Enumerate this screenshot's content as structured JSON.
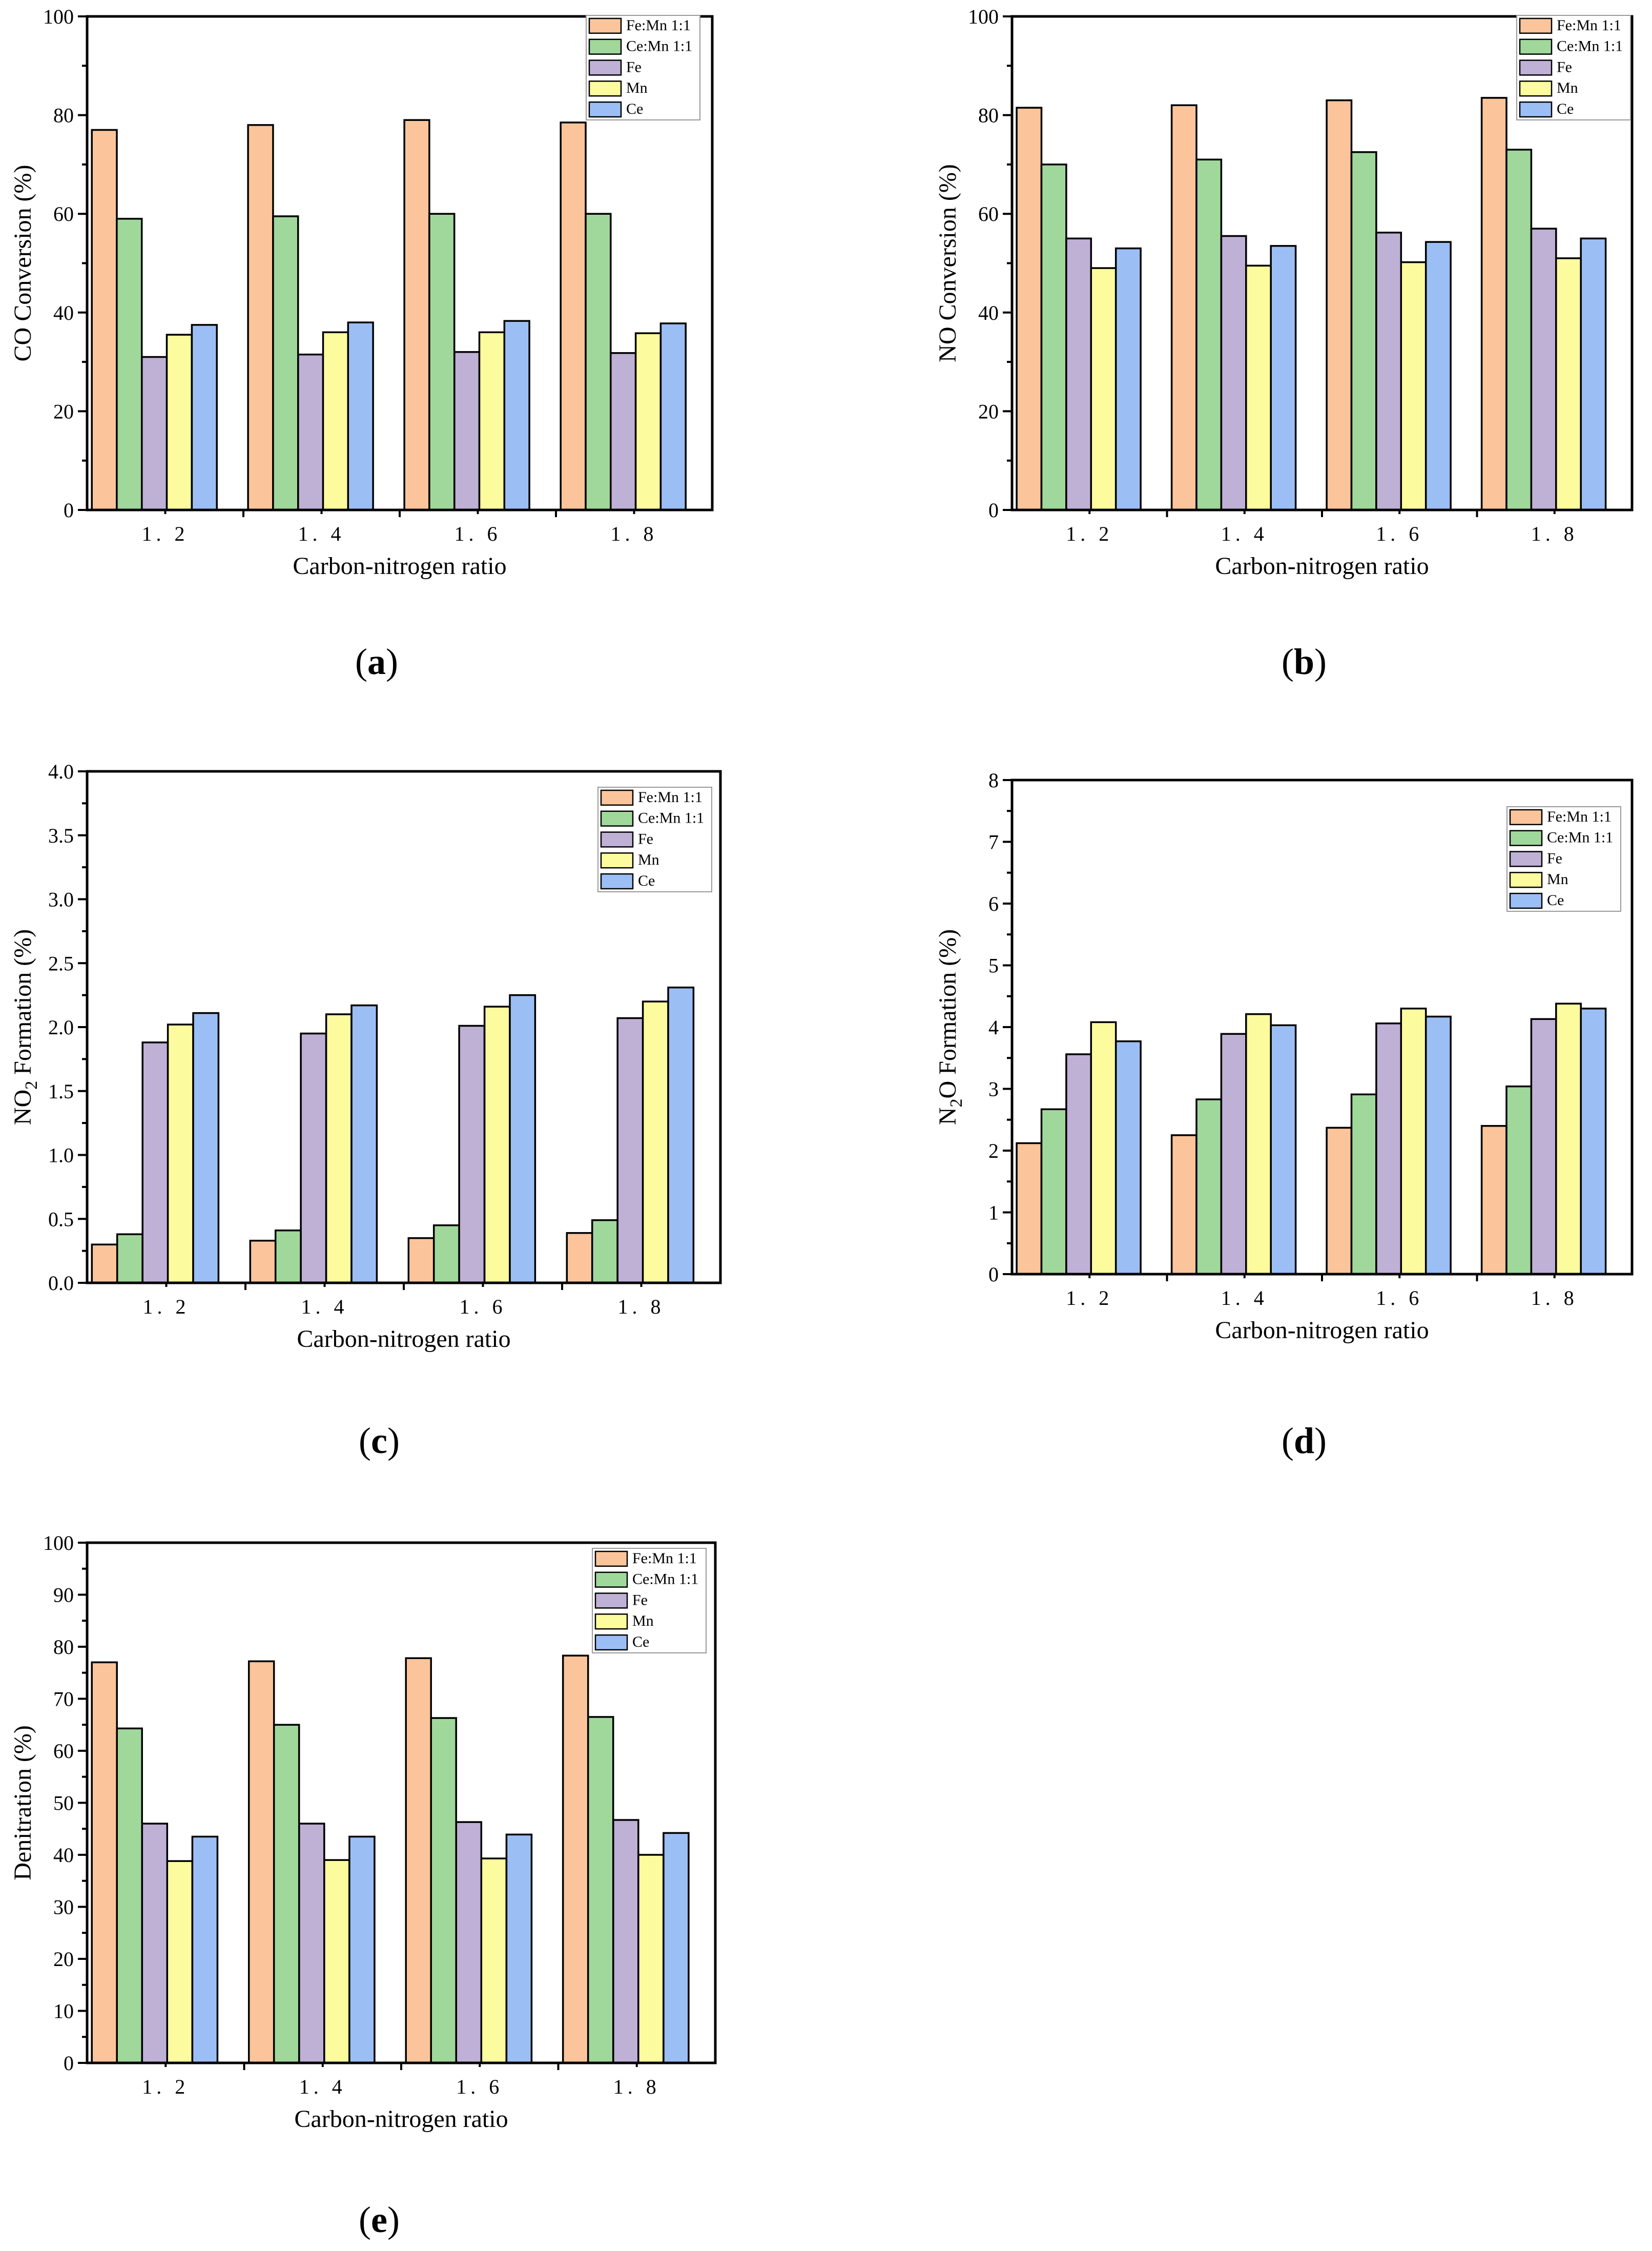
{
  "figure": {
    "panel_labels_open": "(",
    "panel_labels_close": ")"
  },
  "colors": {
    "Fe:Mn 1:1": "#FBC49B",
    "Ce:Mn 1:1": "#A0D89B",
    "Fe": "#BFB0D6",
    "Mn": "#FCFC9E",
    "Ce": "#9BBFF5"
  },
  "chart_data": [
    {
      "type": "bar",
      "panel": "a",
      "title": "",
      "xlabel": "Carbon-nitrogen ratio",
      "ylabel": "CO Conversion (%)",
      "ylim": [
        0,
        100
      ],
      "yticks": [
        "0",
        "20",
        "40",
        "60",
        "80",
        "100"
      ],
      "legend_position": "top-right",
      "categories": [
        "1. 2",
        "1. 4",
        "1. 6",
        "1. 8"
      ],
      "series": [
        {
          "name": "Fe:Mn 1:1",
          "values": [
            77.0,
            78.0,
            79.0,
            78.5
          ]
        },
        {
          "name": "Ce:Mn 1:1",
          "values": [
            59.0,
            59.5,
            60.0,
            60.0
          ]
        },
        {
          "name": "Fe",
          "values": [
            31.0,
            31.5,
            32.0,
            31.8
          ]
        },
        {
          "name": "Mn",
          "values": [
            35.5,
            36.0,
            36.0,
            35.8
          ]
        },
        {
          "name": "Ce",
          "values": [
            37.5,
            38.0,
            38.3,
            37.8
          ]
        }
      ]
    },
    {
      "type": "bar",
      "panel": "b",
      "title": "",
      "xlabel": "Carbon-nitrogen ratio",
      "ylabel": "NO Conversion (%)",
      "ylim": [
        0,
        100
      ],
      "yticks": [
        "0",
        "20",
        "40",
        "60",
        "80",
        "100"
      ],
      "legend_position": "top-right",
      "categories": [
        "1. 2",
        "1. 4",
        "1. 6",
        "1. 8"
      ],
      "series": [
        {
          "name": "Fe:Mn 1:1",
          "values": [
            81.5,
            82.0,
            83.0,
            83.5
          ]
        },
        {
          "name": "Ce:Mn 1:1",
          "values": [
            70.0,
            71.0,
            72.5,
            73.0
          ]
        },
        {
          "name": "Fe",
          "values": [
            55.0,
            55.5,
            56.2,
            57.0
          ]
        },
        {
          "name": "Mn",
          "values": [
            49.0,
            49.5,
            50.2,
            51.0
          ]
        },
        {
          "name": "Ce",
          "values": [
            53.0,
            53.5,
            54.3,
            55.0
          ]
        }
      ]
    },
    {
      "type": "bar",
      "panel": "c",
      "title": "",
      "xlabel": "Carbon-nitrogen ratio",
      "ylabel_main": "NO",
      "ylabel_sub": "2",
      "ylabel_rest": " Formation (%)",
      "ylim": [
        0,
        4
      ],
      "yticks": [
        "0.0",
        "0.5",
        "1.0",
        "1.5",
        "2.0",
        "2.5",
        "3.0",
        "3.5",
        "4.0"
      ],
      "legend_position": "top-right",
      "categories": [
        "1. 2",
        "1. 4",
        "1. 6",
        "1. 8"
      ],
      "series": [
        {
          "name": "Fe:Mn 1:1",
          "values": [
            0.3,
            0.33,
            0.35,
            0.39
          ]
        },
        {
          "name": "Ce:Mn 1:1",
          "values": [
            0.38,
            0.41,
            0.45,
            0.49
          ]
        },
        {
          "name": "Fe",
          "values": [
            1.88,
            1.95,
            2.01,
            2.07
          ]
        },
        {
          "name": "Mn",
          "values": [
            2.02,
            2.1,
            2.16,
            2.2
          ]
        },
        {
          "name": "Ce",
          "values": [
            2.11,
            2.17,
            2.25,
            2.31
          ]
        }
      ]
    },
    {
      "type": "bar",
      "panel": "d",
      "title": "",
      "xlabel": "Carbon-nitrogen ratio",
      "ylabel_main": "N",
      "ylabel_sub": "2",
      "ylabel_rest": "O Formation (%)",
      "ylim": [
        0,
        8
      ],
      "yticks": [
        "0",
        "1",
        "2",
        "3",
        "4",
        "5",
        "6",
        "7",
        "8"
      ],
      "legend_position": "top-right",
      "categories": [
        "1. 2",
        "1. 4",
        "1. 6",
        "1. 8"
      ],
      "series": [
        {
          "name": "Fe:Mn 1:1",
          "values": [
            2.12,
            2.25,
            2.37,
            2.4
          ]
        },
        {
          "name": "Ce:Mn 1:1",
          "values": [
            2.67,
            2.83,
            2.91,
            3.04
          ]
        },
        {
          "name": "Fe",
          "values": [
            3.56,
            3.89,
            4.06,
            4.13
          ]
        },
        {
          "name": "Mn",
          "values": [
            4.08,
            4.21,
            4.3,
            4.38
          ]
        },
        {
          "name": "Ce",
          "values": [
            3.77,
            4.03,
            4.17,
            4.3
          ]
        }
      ]
    },
    {
      "type": "bar",
      "panel": "e",
      "title": "",
      "xlabel": "Carbon-nitrogen ratio",
      "ylabel": "Denitration (%)",
      "ylim": [
        0,
        100
      ],
      "yticks": [
        "0",
        "10",
        "20",
        "30",
        "40",
        "50",
        "60",
        "70",
        "80",
        "90",
        "100"
      ],
      "legend_position": "top-right",
      "categories": [
        "1. 2",
        "1. 4",
        "1. 6",
        "1. 8"
      ],
      "series": [
        {
          "name": "Fe:Mn 1:1",
          "values": [
            77.0,
            77.2,
            77.8,
            78.3
          ]
        },
        {
          "name": "Ce:Mn 1:1",
          "values": [
            64.3,
            65.0,
            66.3,
            66.5
          ]
        },
        {
          "name": "Fe",
          "values": [
            46.0,
            46.0,
            46.3,
            46.7
          ]
        },
        {
          "name": "Mn",
          "values": [
            38.8,
            39.0,
            39.3,
            40.0
          ]
        },
        {
          "name": "Ce",
          "values": [
            43.5,
            43.5,
            43.9,
            44.2
          ]
        }
      ]
    }
  ]
}
